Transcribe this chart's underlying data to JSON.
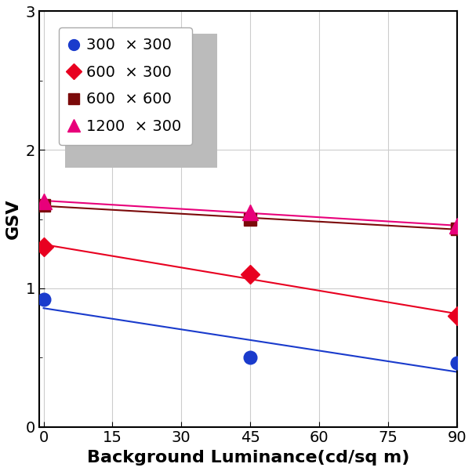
{
  "title": "",
  "xlabel": "Background Luminance(cd/sq m)",
  "ylabel": "GSV",
  "xlim": [
    -1,
    90
  ],
  "ylim": [
    0.0,
    3.0
  ],
  "xticks": [
    0,
    15,
    30,
    45,
    60,
    75,
    90
  ],
  "yticks": [
    0.0,
    1.0,
    2.0,
    3.0
  ],
  "series": [
    {
      "label": "300  × 300",
      "x": [
        0,
        45,
        90
      ],
      "y": [
        0.92,
        0.5,
        0.46
      ],
      "color": "#1a3bcc",
      "marker": "o",
      "markersize": 12,
      "linewidth": 1.5
    },
    {
      "label": "600  × 300",
      "x": [
        0,
        45,
        90
      ],
      "y": [
        1.3,
        1.1,
        0.8
      ],
      "color": "#e80020",
      "marker": "D",
      "markersize": 12,
      "linewidth": 1.5
    },
    {
      "label": "600  × 600",
      "x": [
        0,
        45,
        90
      ],
      "y": [
        1.6,
        1.5,
        1.43
      ],
      "color": "#7b0a0a",
      "marker": "s",
      "markersize": 12,
      "linewidth": 1.5
    },
    {
      "label": "1200  × 300",
      "x": [
        0,
        45,
        90
      ],
      "y": [
        1.63,
        1.55,
        1.45
      ],
      "color": "#e8007a",
      "marker": "^",
      "markersize": 14,
      "linewidth": 1.5
    }
  ],
  "background_color": "#ffffff",
  "grid_color": "#cccccc",
  "legend_fontsize": 14,
  "tick_fontsize": 14,
  "xlabel_fontsize": 16,
  "ylabel_fontsize": 16
}
